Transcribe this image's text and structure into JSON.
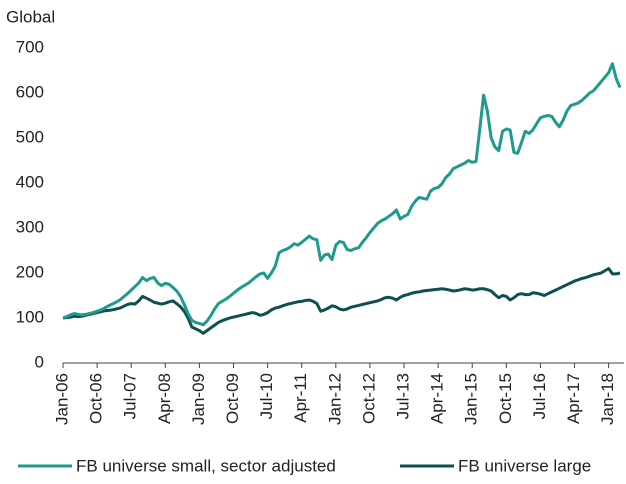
{
  "chart_data": {
    "type": "line",
    "y_label": "Global",
    "categories": [
      "Jan-06",
      null,
      null,
      null,
      null,
      null,
      null,
      null,
      null,
      "Oct-06",
      null,
      null,
      null,
      null,
      null,
      null,
      null,
      null,
      "Jul-07",
      null,
      null,
      null,
      null,
      null,
      null,
      null,
      null,
      "Apr-08",
      null,
      null,
      null,
      null,
      null,
      null,
      null,
      null,
      "Jan-09",
      null,
      null,
      null,
      null,
      null,
      null,
      null,
      null,
      "Oct-09",
      null,
      null,
      null,
      null,
      null,
      null,
      null,
      null,
      "Jul-10",
      null,
      null,
      null,
      null,
      null,
      null,
      null,
      null,
      "Apr-11",
      null,
      null,
      null,
      null,
      null,
      null,
      null,
      null,
      "Jan-12",
      null,
      null,
      null,
      null,
      null,
      null,
      null,
      null,
      "Oct-12",
      null,
      null,
      null,
      null,
      null,
      null,
      null,
      null,
      "Jul-13",
      null,
      null,
      null,
      null,
      null,
      null,
      null,
      null,
      "Apr-14",
      null,
      null,
      null,
      null,
      null,
      null,
      null,
      null,
      "Jan-15",
      null,
      null,
      null,
      null,
      null,
      null,
      null,
      null,
      "Oct-15",
      null,
      null,
      null,
      null,
      null,
      null,
      null,
      null,
      "Jul-16",
      null,
      null,
      null,
      null,
      null,
      null,
      null,
      null,
      "Apr-17",
      null,
      null,
      null,
      null,
      null,
      null,
      null,
      null,
      "Jan-18",
      null,
      null,
      null
    ],
    "series": [
      {
        "name": "FB universe small, sector adjusted",
        "color": "#1f9a8c",
        "values": [
          100,
          103,
          107,
          110,
          108,
          107,
          108,
          110,
          112,
          115,
          118,
          122,
          127,
          131,
          135,
          140,
          147,
          154,
          162,
          170,
          178,
          190,
          183,
          188,
          190,
          178,
          172,
          177,
          175,
          168,
          160,
          148,
          130,
          110,
          95,
          90,
          88,
          85,
          93,
          105,
          120,
          132,
          137,
          142,
          148,
          155,
          162,
          168,
          173,
          178,
          185,
          192,
          198,
          200,
          188,
          200,
          215,
          245,
          250,
          253,
          258,
          265,
          262,
          268,
          275,
          282,
          276,
          274,
          228,
          240,
          242,
          230,
          262,
          270,
          268,
          252,
          250,
          254,
          256,
          268,
          278,
          290,
          300,
          310,
          316,
          320,
          326,
          332,
          340,
          320,
          326,
          330,
          348,
          360,
          368,
          366,
          364,
          382,
          388,
          390,
          398,
          412,
          420,
          432,
          436,
          440,
          444,
          450,
          446,
          448,
          520,
          595,
          560,
          500,
          480,
          472,
          515,
          520,
          518,
          468,
          466,
          490,
          515,
          510,
          518,
          532,
          545,
          548,
          550,
          548,
          535,
          525,
          540,
          560,
          572,
          575,
          578,
          584,
          592,
          600,
          605,
          615,
          625,
          635,
          645,
          665,
          632,
          612
        ]
      },
      {
        "name": "FB universe large",
        "color": "#0e4f4f",
        "values": [
          100,
          101,
          102,
          104,
          103,
          104,
          106,
          108,
          110,
          112,
          114,
          116,
          117,
          118,
          120,
          122,
          126,
          130,
          132,
          131,
          138,
          148,
          144,
          140,
          135,
          133,
          131,
          133,
          136,
          138,
          132,
          125,
          115,
          100,
          80,
          76,
          72,
          66,
          72,
          78,
          84,
          90,
          94,
          97,
          100,
          102,
          104,
          106,
          108,
          110,
          112,
          110,
          106,
          108,
          112,
          118,
          122,
          124,
          127,
          130,
          132,
          134,
          136,
          137,
          139,
          140,
          137,
          132,
          115,
          118,
          122,
          127,
          125,
          120,
          118,
          120,
          124,
          126,
          128,
          130,
          132,
          134,
          136,
          138,
          141,
          145,
          146,
          144,
          140,
          146,
          150,
          152,
          155,
          157,
          158,
          160,
          161,
          162,
          163,
          164,
          165,
          164,
          162,
          160,
          161,
          163,
          165,
          164,
          162,
          163,
          165,
          165,
          163,
          160,
          152,
          145,
          150,
          148,
          140,
          145,
          152,
          154,
          152,
          152,
          156,
          155,
          153,
          150,
          154,
          158,
          162,
          166,
          170,
          174,
          178,
          182,
          185,
          188,
          190,
          193,
          196,
          198,
          200,
          205,
          210,
          198,
          198,
          200
        ]
      }
    ],
    "ylim": [
      0,
      700
    ],
    "yticks": [
      0,
      100,
      200,
      300,
      400,
      500,
      600,
      700
    ],
    "grid": false
  }
}
